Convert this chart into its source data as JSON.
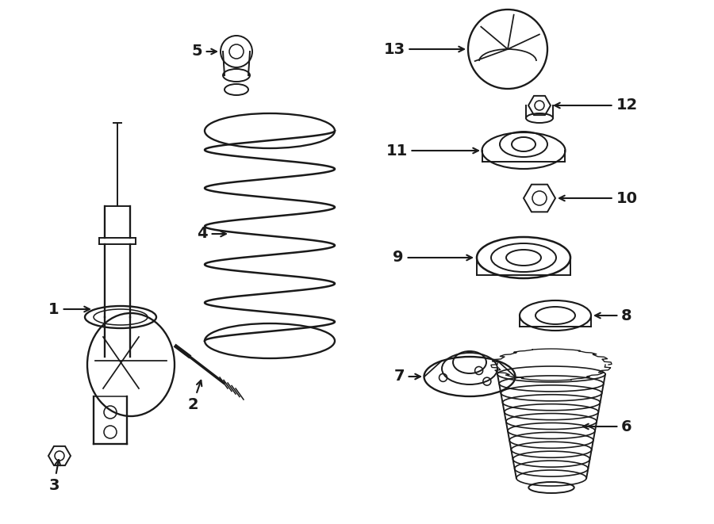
{
  "bg_color": "#ffffff",
  "lc": "#1a1a1a",
  "lw": 1.4,
  "fig_w": 9.0,
  "fig_h": 6.61,
  "xlim": [
    0,
    900
  ],
  "ylim": [
    0,
    661
  ]
}
